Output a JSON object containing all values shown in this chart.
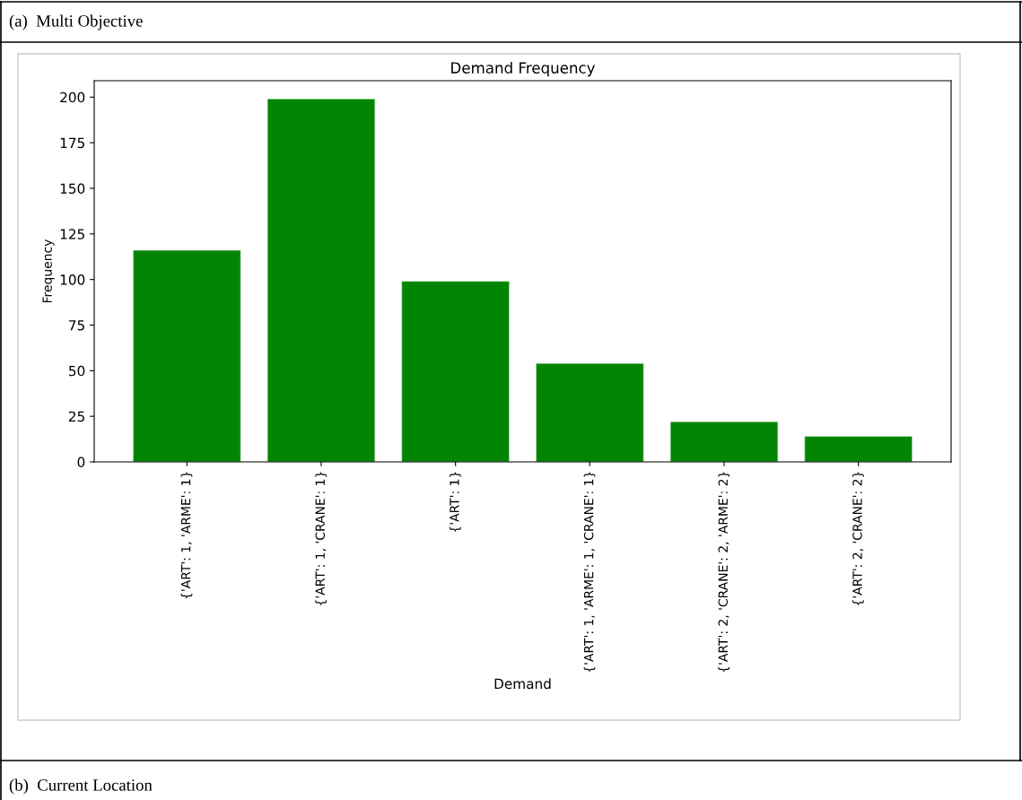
{
  "chart_data": {
    "type": "bar",
    "title": "Demand Frequency",
    "xlabel": "Demand",
    "ylabel": "Frequency",
    "categories": [
      "{'ART': 1, 'ARME': 1}",
      "{'ART': 1, 'CRANE': 1}",
      "{'ART': 1}",
      "{'ART': 1, 'ARME': 1, 'CRANE': 1}",
      "{'ART': 2, 'CRANE': 2, 'ARME': 2}",
      "{'ART': 2, 'CRANE': 2}"
    ],
    "values": [
      116,
      199,
      99,
      54,
      22,
      14
    ],
    "color": "#038503",
    "ylim": [
      0,
      209
    ],
    "yticks": [
      0,
      25,
      50,
      75,
      100,
      125,
      150,
      175,
      200
    ],
    "grid": false,
    "annotations": [
      "(a)  Multi Objective",
      "(b)  Current Location"
    ]
  }
}
